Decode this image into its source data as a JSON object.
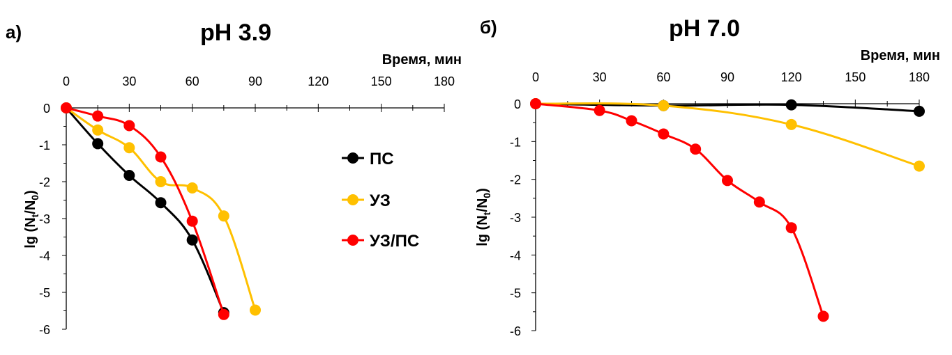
{
  "chart_data": [
    {
      "type": "line",
      "panel_label": "а)",
      "title": "pH 3.9",
      "xlabel": "Время, мин",
      "ylabel": "lg (N",
      "ylabel_sub1": "t",
      "ylabel_mid": "/N",
      "ylabel_sub2": "0",
      "ylabel_end": ")",
      "xlim": [
        0,
        180
      ],
      "ylim": [
        -6,
        0
      ],
      "xticks": [
        0,
        30,
        60,
        90,
        120,
        150,
        180
      ],
      "yticks": [
        0,
        -1,
        -2,
        -3,
        -4,
        -5,
        -6
      ],
      "series": [
        {
          "name": "ПС",
          "color": "#000000",
          "x": [
            0,
            15,
            30,
            45,
            60,
            75
          ],
          "y": [
            0,
            -0.97,
            -1.83,
            -2.57,
            -3.58,
            -5.55
          ]
        },
        {
          "name": "УЗ",
          "color": "#FFC000",
          "x": [
            0,
            15,
            30,
            45,
            60,
            75,
            90
          ],
          "y": [
            0,
            -0.6,
            -1.08,
            -2.0,
            -2.17,
            -2.93,
            -5.48
          ]
        },
        {
          "name": "УЗ/ПС",
          "color": "#FF0000",
          "x": [
            0,
            15,
            30,
            45,
            60,
            75
          ],
          "y": [
            0,
            -0.22,
            -0.48,
            -1.33,
            -3.07,
            -5.6
          ]
        }
      ],
      "legend": {
        "position": "right",
        "entries": [
          "ПС",
          "УЗ",
          "УЗ/ПС"
        ]
      }
    },
    {
      "type": "line",
      "panel_label": "б)",
      "title": "pH 7.0",
      "xlabel": "Время, мин",
      "ylabel": "lg (N",
      "ylabel_sub1": "t",
      "ylabel_mid": "/N",
      "ylabel_sub2": "0",
      "ylabel_end": ")",
      "xlim": [
        0,
        180
      ],
      "ylim": [
        -6,
        0
      ],
      "xticks": [
        0,
        30,
        60,
        90,
        120,
        150,
        180
      ],
      "yticks": [
        0,
        -1,
        -2,
        -3,
        -4,
        -5,
        -6
      ],
      "series": [
        {
          "name": "ПС",
          "color": "#000000",
          "x": [
            0,
            60,
            120,
            180
          ],
          "y": [
            0,
            -0.05,
            -0.03,
            -0.2
          ]
        },
        {
          "name": "УЗ",
          "color": "#FFC000",
          "x": [
            0,
            60,
            120,
            180
          ],
          "y": [
            0,
            -0.05,
            -0.55,
            -1.65
          ]
        },
        {
          "name": "УЗ/ПС",
          "color": "#FF0000",
          "x": [
            0,
            30,
            45,
            60,
            75,
            90,
            105,
            120,
            135
          ],
          "y": [
            0,
            -0.18,
            -0.45,
            -0.8,
            -1.2,
            -2.03,
            -2.6,
            -3.28,
            -5.62
          ]
        }
      ]
    }
  ]
}
